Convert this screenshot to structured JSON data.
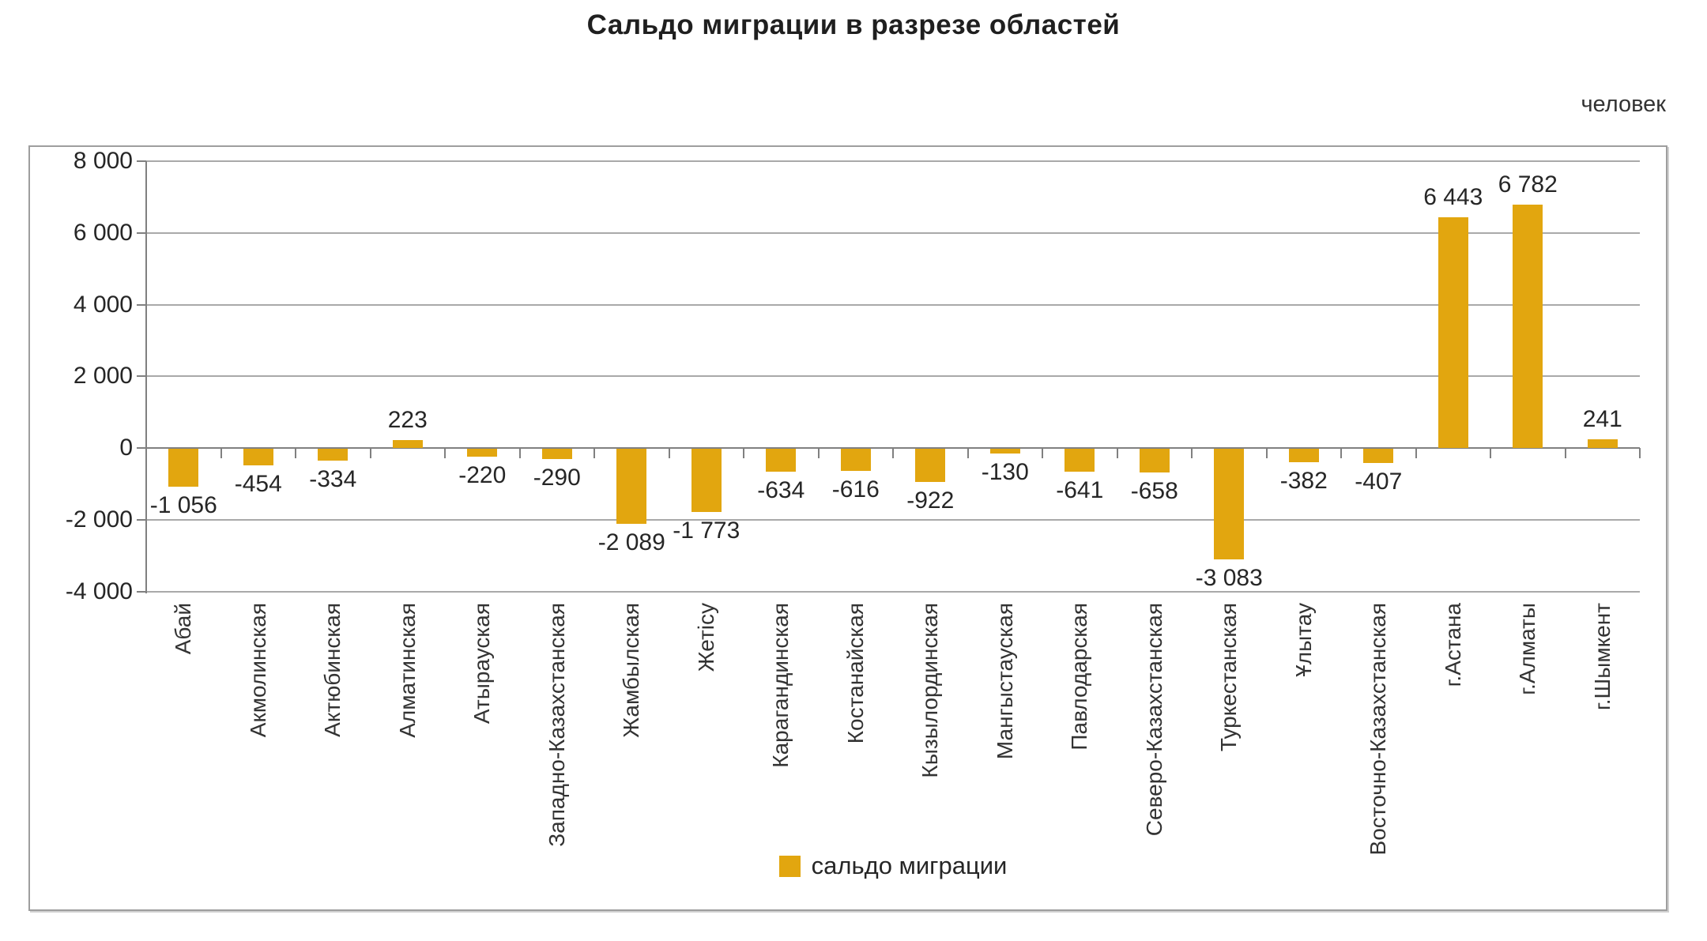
{
  "title": "Сальдо миграции в разрезе областей",
  "unit_label": "человек",
  "legend": {
    "label": "сальдо миграции"
  },
  "colors": {
    "bar": "#e2a60f",
    "gridline": "#a9a9a9",
    "axis": "#808080",
    "frame": "#9e9e9e",
    "text": "#262626"
  },
  "y_axis": {
    "tick_labels": [
      "8 000",
      "6 000",
      "4 000",
      "2 000",
      "0",
      "-2 000",
      "-4 000"
    ],
    "tick_values": [
      8000,
      6000,
      4000,
      2000,
      0,
      -2000,
      -4000
    ],
    "max": 8000,
    "min": -4000,
    "step": 2000
  },
  "chart_data": {
    "type": "bar",
    "title": "Сальдо миграции в разрезе областей",
    "unit": "человек",
    "legend_entries": [
      "сальдо миграции"
    ],
    "legend_position": "bottom",
    "grid": true,
    "ylim": [
      -4000,
      8000
    ],
    "bar_color": "#e2a60f",
    "categories": [
      "Абай",
      "Акмолинская",
      "Актюбинская",
      "Алматинская",
      "Атырауская",
      "Западно-Казахстанская",
      "Жамбылская",
      "Жетісу",
      "Карагандинская",
      "Костанайская",
      "Кызылординская",
      "Мангыстауская",
      "Павлодарская",
      "Северо-Казахстанская",
      "Туркестанская",
      "Ұлытау",
      "Восточно-Казахстанская",
      "г.Астана",
      "г.Алматы",
      "г.Шымкент"
    ],
    "values": [
      -1056,
      -454,
      -334,
      223,
      -220,
      -290,
      -2089,
      -1773,
      -634,
      -616,
      -922,
      -130,
      -641,
      -658,
      -3083,
      -382,
      -407,
      6443,
      6782,
      241
    ],
    "value_labels": [
      "-1 056",
      "-454",
      "-334",
      "223",
      "-220",
      "-290",
      "-2 089",
      "-1 773",
      "-634",
      "-616",
      "-922",
      "-130",
      "-641",
      "-658",
      "-3 083",
      "-382",
      "-407",
      "6 443",
      "6 782",
      "241"
    ]
  }
}
